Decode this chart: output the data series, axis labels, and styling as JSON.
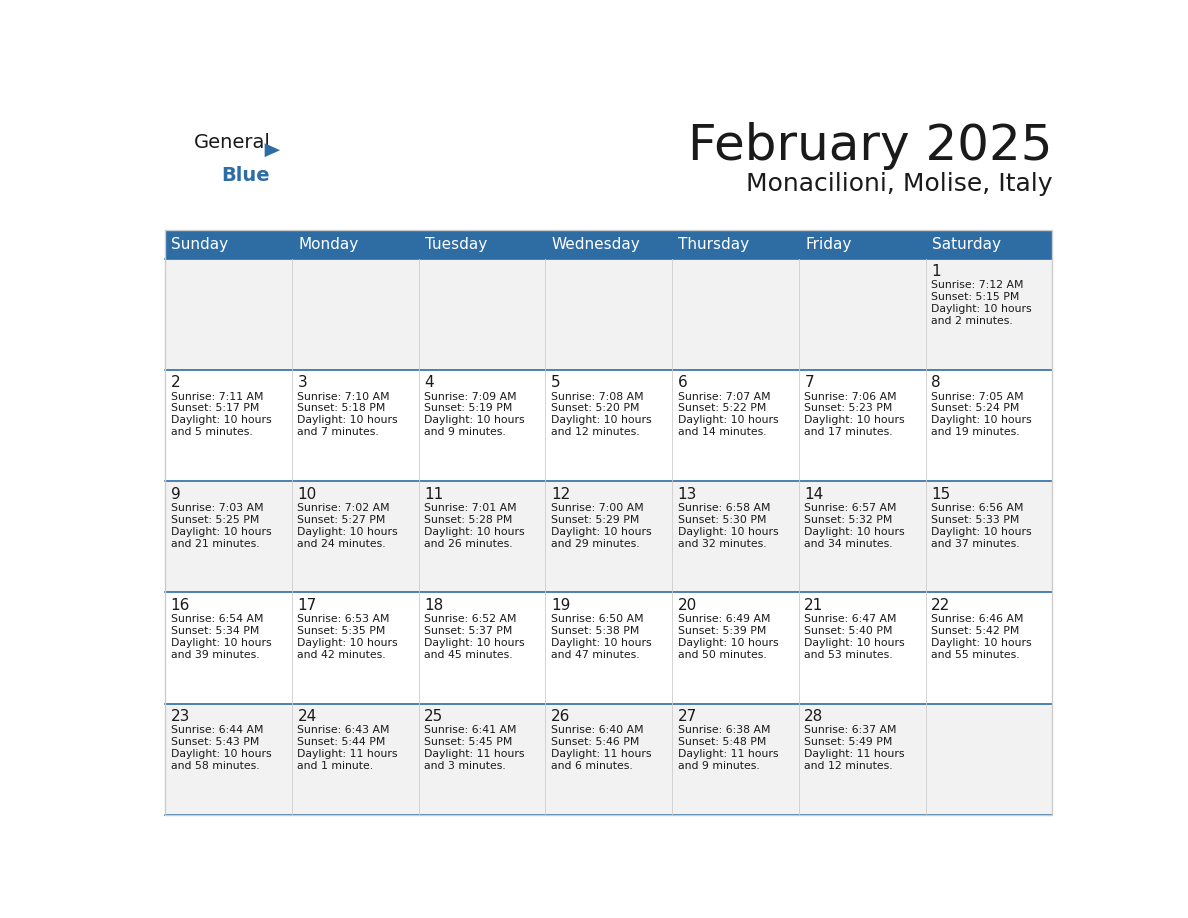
{
  "title": "February 2025",
  "subtitle": "Monacilioni, Molise, Italy",
  "header_bg": "#2E6DA4",
  "header_text_color": "#FFFFFF",
  "cell_bg_row0": "#F2F2F2",
  "cell_bg_row1": "#FFFFFF",
  "cell_bg_row2": "#F2F2F2",
  "cell_bg_row3": "#FFFFFF",
  "cell_bg_row4": "#F2F2F2",
  "day_headers": [
    "Sunday",
    "Monday",
    "Tuesday",
    "Wednesday",
    "Thursday",
    "Friday",
    "Saturday"
  ],
  "days": [
    {
      "day": 1,
      "col": 6,
      "row": 0,
      "sunrise": "7:12 AM",
      "sunset": "5:15 PM",
      "daylight_line1": "10 hours",
      "daylight_line2": "and 2 minutes."
    },
    {
      "day": 2,
      "col": 0,
      "row": 1,
      "sunrise": "7:11 AM",
      "sunset": "5:17 PM",
      "daylight_line1": "10 hours",
      "daylight_line2": "and 5 minutes."
    },
    {
      "day": 3,
      "col": 1,
      "row": 1,
      "sunrise": "7:10 AM",
      "sunset": "5:18 PM",
      "daylight_line1": "10 hours",
      "daylight_line2": "and 7 minutes."
    },
    {
      "day": 4,
      "col": 2,
      "row": 1,
      "sunrise": "7:09 AM",
      "sunset": "5:19 PM",
      "daylight_line1": "10 hours",
      "daylight_line2": "and 9 minutes."
    },
    {
      "day": 5,
      "col": 3,
      "row": 1,
      "sunrise": "7:08 AM",
      "sunset": "5:20 PM",
      "daylight_line1": "10 hours",
      "daylight_line2": "and 12 minutes."
    },
    {
      "day": 6,
      "col": 4,
      "row": 1,
      "sunrise": "7:07 AM",
      "sunset": "5:22 PM",
      "daylight_line1": "10 hours",
      "daylight_line2": "and 14 minutes."
    },
    {
      "day": 7,
      "col": 5,
      "row": 1,
      "sunrise": "7:06 AM",
      "sunset": "5:23 PM",
      "daylight_line1": "10 hours",
      "daylight_line2": "and 17 minutes."
    },
    {
      "day": 8,
      "col": 6,
      "row": 1,
      "sunrise": "7:05 AM",
      "sunset": "5:24 PM",
      "daylight_line1": "10 hours",
      "daylight_line2": "and 19 minutes."
    },
    {
      "day": 9,
      "col": 0,
      "row": 2,
      "sunrise": "7:03 AM",
      "sunset": "5:25 PM",
      "daylight_line1": "10 hours",
      "daylight_line2": "and 21 minutes."
    },
    {
      "day": 10,
      "col": 1,
      "row": 2,
      "sunrise": "7:02 AM",
      "sunset": "5:27 PM",
      "daylight_line1": "10 hours",
      "daylight_line2": "and 24 minutes."
    },
    {
      "day": 11,
      "col": 2,
      "row": 2,
      "sunrise": "7:01 AM",
      "sunset": "5:28 PM",
      "daylight_line1": "10 hours",
      "daylight_line2": "and 26 minutes."
    },
    {
      "day": 12,
      "col": 3,
      "row": 2,
      "sunrise": "7:00 AM",
      "sunset": "5:29 PM",
      "daylight_line1": "10 hours",
      "daylight_line2": "and 29 minutes."
    },
    {
      "day": 13,
      "col": 4,
      "row": 2,
      "sunrise": "6:58 AM",
      "sunset": "5:30 PM",
      "daylight_line1": "10 hours",
      "daylight_line2": "and 32 minutes."
    },
    {
      "day": 14,
      "col": 5,
      "row": 2,
      "sunrise": "6:57 AM",
      "sunset": "5:32 PM",
      "daylight_line1": "10 hours",
      "daylight_line2": "and 34 minutes."
    },
    {
      "day": 15,
      "col": 6,
      "row": 2,
      "sunrise": "6:56 AM",
      "sunset": "5:33 PM",
      "daylight_line1": "10 hours",
      "daylight_line2": "and 37 minutes."
    },
    {
      "day": 16,
      "col": 0,
      "row": 3,
      "sunrise": "6:54 AM",
      "sunset": "5:34 PM",
      "daylight_line1": "10 hours",
      "daylight_line2": "and 39 minutes."
    },
    {
      "day": 17,
      "col": 1,
      "row": 3,
      "sunrise": "6:53 AM",
      "sunset": "5:35 PM",
      "daylight_line1": "10 hours",
      "daylight_line2": "and 42 minutes."
    },
    {
      "day": 18,
      "col": 2,
      "row": 3,
      "sunrise": "6:52 AM",
      "sunset": "5:37 PM",
      "daylight_line1": "10 hours",
      "daylight_line2": "and 45 minutes."
    },
    {
      "day": 19,
      "col": 3,
      "row": 3,
      "sunrise": "6:50 AM",
      "sunset": "5:38 PM",
      "daylight_line1": "10 hours",
      "daylight_line2": "and 47 minutes."
    },
    {
      "day": 20,
      "col": 4,
      "row": 3,
      "sunrise": "6:49 AM",
      "sunset": "5:39 PM",
      "daylight_line1": "10 hours",
      "daylight_line2": "and 50 minutes."
    },
    {
      "day": 21,
      "col": 5,
      "row": 3,
      "sunrise": "6:47 AM",
      "sunset": "5:40 PM",
      "daylight_line1": "10 hours",
      "daylight_line2": "and 53 minutes."
    },
    {
      "day": 22,
      "col": 6,
      "row": 3,
      "sunrise": "6:46 AM",
      "sunset": "5:42 PM",
      "daylight_line1": "10 hours",
      "daylight_line2": "and 55 minutes."
    },
    {
      "day": 23,
      "col": 0,
      "row": 4,
      "sunrise": "6:44 AM",
      "sunset": "5:43 PM",
      "daylight_line1": "10 hours",
      "daylight_line2": "and 58 minutes."
    },
    {
      "day": 24,
      "col": 1,
      "row": 4,
      "sunrise": "6:43 AM",
      "sunset": "5:44 PM",
      "daylight_line1": "11 hours",
      "daylight_line2": "and 1 minute."
    },
    {
      "day": 25,
      "col": 2,
      "row": 4,
      "sunrise": "6:41 AM",
      "sunset": "5:45 PM",
      "daylight_line1": "11 hours",
      "daylight_line2": "and 3 minutes."
    },
    {
      "day": 26,
      "col": 3,
      "row": 4,
      "sunrise": "6:40 AM",
      "sunset": "5:46 PM",
      "daylight_line1": "11 hours",
      "daylight_line2": "and 6 minutes."
    },
    {
      "day": 27,
      "col": 4,
      "row": 4,
      "sunrise": "6:38 AM",
      "sunset": "5:48 PM",
      "daylight_line1": "11 hours",
      "daylight_line2": "and 9 minutes."
    },
    {
      "day": 28,
      "col": 5,
      "row": 4,
      "sunrise": "6:37 AM",
      "sunset": "5:49 PM",
      "daylight_line1": "11 hours",
      "daylight_line2": "and 12 minutes."
    }
  ],
  "num_rows": 5,
  "num_cols": 7,
  "header_bg_color": "#2E6DA4",
  "row_sep_color": "#2E6DA4",
  "col_sep_color": "#CCCCCC",
  "outer_border_color": "#CCCCCC"
}
